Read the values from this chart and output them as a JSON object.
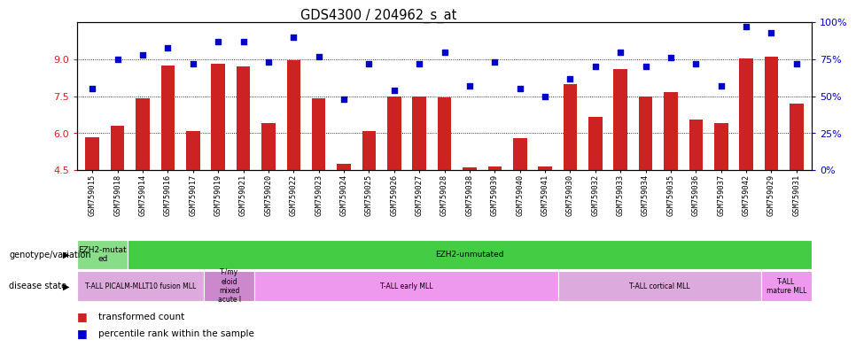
{
  "title": "GDS4300 / 204962_s_at",
  "samples": [
    "GSM759015",
    "GSM759018",
    "GSM759014",
    "GSM759016",
    "GSM759017",
    "GSM759019",
    "GSM759021",
    "GSM759020",
    "GSM759022",
    "GSM759023",
    "GSM759024",
    "GSM759025",
    "GSM759026",
    "GSM759027",
    "GSM759028",
    "GSM759038",
    "GSM759039",
    "GSM759040",
    "GSM759041",
    "GSM759030",
    "GSM759032",
    "GSM759033",
    "GSM759034",
    "GSM759035",
    "GSM759036",
    "GSM759037",
    "GSM759042",
    "GSM759029",
    "GSM759031"
  ],
  "bar_values": [
    5.85,
    6.3,
    7.4,
    8.75,
    6.1,
    8.8,
    8.7,
    6.4,
    8.95,
    7.4,
    4.75,
    6.1,
    7.5,
    7.5,
    7.45,
    4.6,
    4.65,
    5.8,
    4.65,
    8.0,
    6.65,
    8.6,
    7.5,
    7.65,
    6.55,
    6.4,
    9.05,
    9.1,
    7.2
  ],
  "dot_values_pct": [
    55,
    75,
    78,
    83,
    72,
    87,
    87,
    73,
    90,
    77,
    48,
    72,
    54,
    72,
    80,
    57,
    73,
    55,
    50,
    62,
    70,
    80,
    70,
    76,
    72,
    57,
    97,
    93,
    72
  ],
  "ylim_left": [
    4.5,
    10.5
  ],
  "yticks_left": [
    4.5,
    6.0,
    7.5,
    9.0
  ],
  "ylim_right": [
    0,
    100
  ],
  "yticks_right": [
    0,
    25,
    50,
    75,
    100
  ],
  "bar_color": "#cc2222",
  "dot_color": "#0000cc",
  "background_color": "#ffffff",
  "plot_bg": "#ffffff",
  "tick_bg": "#d0d0d0",
  "genotype_groups": [
    {
      "label": "EZH2-mutat\ned",
      "start": 0,
      "end": 2,
      "color": "#88dd88"
    },
    {
      "label": "EZH2-unmutated",
      "start": 2,
      "end": 29,
      "color": "#44cc44"
    }
  ],
  "disease_groups": [
    {
      "label": "T-ALL PICALM-MLLT10 fusion MLL",
      "start": 0,
      "end": 5,
      "color": "#dd88dd"
    },
    {
      "label": "T-/my\neloid\nmixed\nacute l",
      "start": 5,
      "end": 7,
      "color": "#cc77cc"
    },
    {
      "label": "T-ALL early MLL",
      "start": 7,
      "end": 19,
      "color": "#dd88dd"
    },
    {
      "label": "T-ALL cortical MLL",
      "start": 19,
      "end": 27,
      "color": "#dd88dd"
    },
    {
      "label": "T-ALL\nmature MLL",
      "start": 27,
      "end": 29,
      "color": "#cc77cc"
    }
  ],
  "legend_items": [
    {
      "label": "transformed count",
      "color": "#cc2222"
    },
    {
      "label": "percentile rank within the sample",
      "color": "#0000cc"
    }
  ]
}
